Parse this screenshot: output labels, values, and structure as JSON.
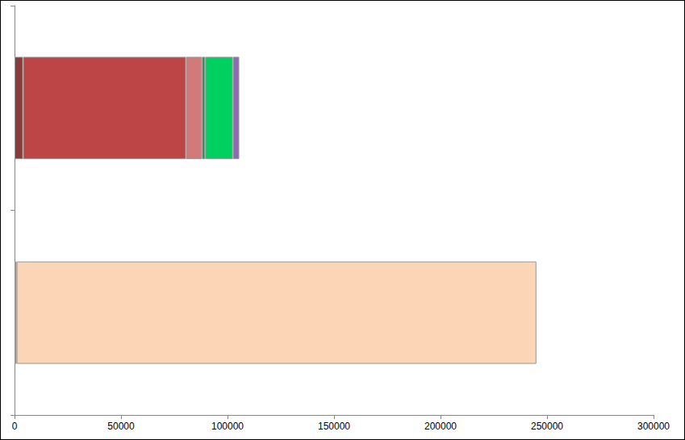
{
  "chart_data": {
    "type": "bar",
    "orientation": "horizontal",
    "stacked": true,
    "grid": false,
    "tick_labels": "x",
    "categories": [
      null,
      null
    ],
    "series": [
      {
        "color": "#e07b39",
        "values": [
          1000,
          null
        ]
      },
      {
        "color": "#fbd5b5",
        "values": [
          244000,
          null
        ]
      },
      {
        "color": "#8b3a3a",
        "values": [
          null,
          4000
        ]
      },
      {
        "color": "#be4545",
        "values": [
          null,
          76500
        ]
      },
      {
        "color": "#d07a7a",
        "values": [
          null,
          7500
        ]
      },
      {
        "color": "#2e8b57",
        "values": [
          null,
          1500
        ]
      },
      {
        "color": "#00d060",
        "values": [
          null,
          13000
        ]
      },
      {
        "color": "#8c6bb1",
        "values": [
          null,
          3000
        ]
      }
    ],
    "xlim": [
      0,
      300000
    ],
    "xticks": [
      0,
      50000,
      100000,
      150000,
      200000,
      250000,
      300000
    ]
  }
}
